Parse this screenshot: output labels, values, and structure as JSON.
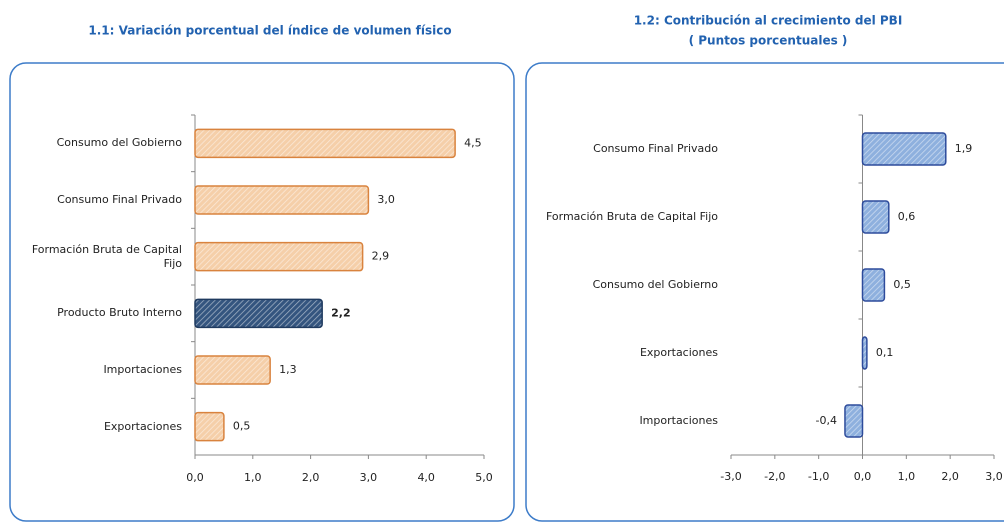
{
  "chart_data": [
    {
      "type": "bar",
      "orientation": "horizontal",
      "title": "1.1: Variación porcentual del índice de volumen físico",
      "categories": [
        "Consumo del Gobierno",
        "Consumo Final Privado",
        "Formación Bruta de Capital Fijo",
        "Producto Bruto Interno",
        "Importaciones",
        "Exportaciones"
      ],
      "values": [
        4.5,
        3.0,
        2.9,
        2.2,
        1.3,
        0.5
      ],
      "value_labels": [
        "4,5",
        "3,0",
        "2,9",
        "2,2",
        "1,3",
        "0,5"
      ],
      "value_label_bold": [
        false,
        false,
        false,
        true,
        false,
        false
      ],
      "colors": [
        "#f5cfa9",
        "#f5cfa9",
        "#f5cfa9",
        "#34557f",
        "#f5cfa9",
        "#f5cfa9"
      ],
      "edge_colors": [
        "#d9833e",
        "#d9833e",
        "#d9833e",
        "#1f3a5f",
        "#d9833e",
        "#d9833e"
      ],
      "xlim": [
        0,
        5
      ],
      "xticks": [
        {
          "value": 0,
          "label": "0,0"
        },
        {
          "value": 1,
          "label": "1,0"
        },
        {
          "value": 2,
          "label": "2,0"
        },
        {
          "value": 3,
          "label": "3,0"
        },
        {
          "value": 4,
          "label": "4,0"
        },
        {
          "value": 5,
          "label": "5,0"
        }
      ]
    },
    {
      "type": "bar",
      "orientation": "horizontal",
      "title": "1.2: Contribución al crecimiento del PBI",
      "subtitle": "( Puntos porcentuales )",
      "categories": [
        "Consumo Final Privado",
        "Formación Bruta de Capital Fijo",
        "Consumo del Gobierno",
        "Exportaciones",
        "Importaciones"
      ],
      "values": [
        1.9,
        0.6,
        0.5,
        0.1,
        -0.4
      ],
      "value_labels": [
        "1,9",
        "0,6",
        "0,5",
        "0,1",
        "-0,4"
      ],
      "value_label_bold": [
        false,
        false,
        false,
        false,
        false
      ],
      "colors": [
        "#8eb0de",
        "#8eb0de",
        "#8eb0de",
        "#8eb0de",
        "#8eb0de"
      ],
      "edge_colors": [
        "#2d4b9b",
        "#2d4b9b",
        "#2d4b9b",
        "#2d4b9b",
        "#2d4b9b"
      ],
      "xlim": [
        -3,
        3
      ],
      "xticks": [
        {
          "value": -3,
          "label": "-3,0"
        },
        {
          "value": -2,
          "label": "-2,0"
        },
        {
          "value": -1,
          "label": "-1,0"
        },
        {
          "value": 0,
          "label": "0,0"
        },
        {
          "value": 1,
          "label": "1,0"
        },
        {
          "value": 2,
          "label": "2,0"
        },
        {
          "value": 3,
          "label": "3,0"
        }
      ]
    }
  ]
}
